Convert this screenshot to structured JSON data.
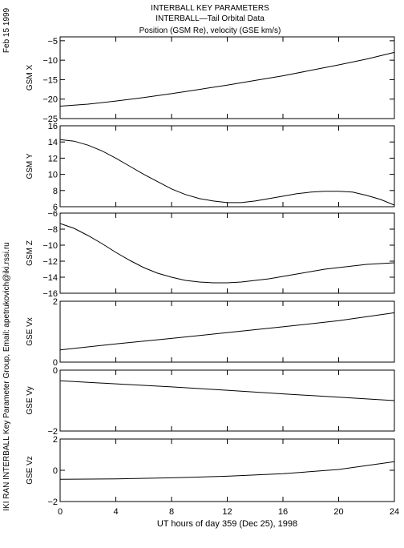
{
  "header": {
    "title_lines": [
      "INTERBALL KEY PARAMETERS",
      "INTERBALL—Tail Orbital Data",
      "Position (GSM Re), velocity (GSE km/s)"
    ],
    "date_label": "Feb 15 1999",
    "credit_label": "IKI RAN INTERBALL Key Parameter Group, Email: apetrukovich@iki.rssi.ru"
  },
  "chart_data": [
    {
      "type": "line",
      "ylabel": "GSM X",
      "ylim": [
        -25,
        -4
      ],
      "yticks": [
        -5,
        -10,
        -15,
        -20,
        -25
      ],
      "series": [
        {
          "x": [
            0,
            2,
            4,
            6,
            8,
            10,
            12,
            14,
            16,
            18,
            20,
            22,
            24
          ],
          "values": [
            -21.8,
            -21.3,
            -20.5,
            -19.6,
            -18.6,
            -17.5,
            -16.4,
            -15.2,
            -14.0,
            -12.6,
            -11.2,
            -9.7,
            -8.0
          ]
        }
      ]
    },
    {
      "type": "line",
      "ylabel": "GSM Y",
      "ylim": [
        6,
        16
      ],
      "yticks": [
        16,
        14,
        12,
        10,
        8,
        6
      ],
      "series": [
        {
          "x": [
            0,
            1,
            2,
            3,
            4,
            5,
            6,
            7,
            8,
            9,
            10,
            11,
            12,
            13,
            14,
            15,
            16,
            17,
            18,
            19,
            20,
            21,
            22,
            23,
            24
          ],
          "values": [
            14.3,
            14.1,
            13.6,
            12.9,
            12.0,
            11.0,
            10.0,
            9.1,
            8.2,
            7.5,
            7.0,
            6.7,
            6.5,
            6.5,
            6.7,
            7.0,
            7.3,
            7.6,
            7.8,
            7.9,
            7.9,
            7.8,
            7.4,
            6.9,
            6.2
          ]
        }
      ]
    },
    {
      "type": "line",
      "ylabel": "GSM Z",
      "ylim": [
        -16,
        -6
      ],
      "yticks": [
        -6,
        -8,
        -10,
        -12,
        -14,
        -16
      ],
      "series": [
        {
          "x": [
            0,
            1,
            2,
            3,
            4,
            5,
            6,
            7,
            8,
            9,
            10,
            11,
            12,
            13,
            14,
            15,
            16,
            17,
            18,
            19,
            20,
            21,
            22,
            23,
            24
          ],
          "values": [
            -7.3,
            -7.9,
            -8.8,
            -9.8,
            -10.9,
            -11.9,
            -12.8,
            -13.5,
            -14.0,
            -14.4,
            -14.6,
            -14.7,
            -14.7,
            -14.6,
            -14.4,
            -14.2,
            -13.9,
            -13.6,
            -13.3,
            -13.0,
            -12.8,
            -12.6,
            -12.4,
            -12.3,
            -12.2
          ]
        }
      ]
    },
    {
      "type": "line",
      "ylabel": "GSE Vx",
      "ylim": [
        0,
        2
      ],
      "yticks": [
        2,
        0
      ],
      "series": [
        {
          "x": [
            0,
            4,
            8,
            12,
            16,
            20,
            24
          ],
          "values": [
            0.4,
            0.6,
            0.78,
            0.97,
            1.16,
            1.36,
            1.62
          ]
        }
      ]
    },
    {
      "type": "line",
      "ylabel": "GSE Vy",
      "ylim": [
        -2,
        0
      ],
      "yticks": [
        0,
        -2
      ],
      "series": [
        {
          "x": [
            0,
            4,
            8,
            12,
            16,
            20,
            24
          ],
          "values": [
            -0.35,
            -0.45,
            -0.55,
            -0.66,
            -0.78,
            -0.89,
            -1.0
          ]
        }
      ]
    },
    {
      "type": "line",
      "ylabel": "GSE Vz",
      "ylim": [
        -2,
        2
      ],
      "yticks": [
        2,
        0,
        -2
      ],
      "series": [
        {
          "x": [
            0,
            4,
            8,
            12,
            16,
            20,
            24
          ],
          "values": [
            -0.58,
            -0.55,
            -0.48,
            -0.38,
            -0.22,
            0.05,
            0.55
          ]
        }
      ]
    }
  ],
  "x_axis": {
    "xlim": [
      0,
      24
    ],
    "ticks": [
      0,
      4,
      8,
      12,
      16,
      20,
      24
    ],
    "label": "UT hours of day 359 (Dec 25), 1998"
  }
}
